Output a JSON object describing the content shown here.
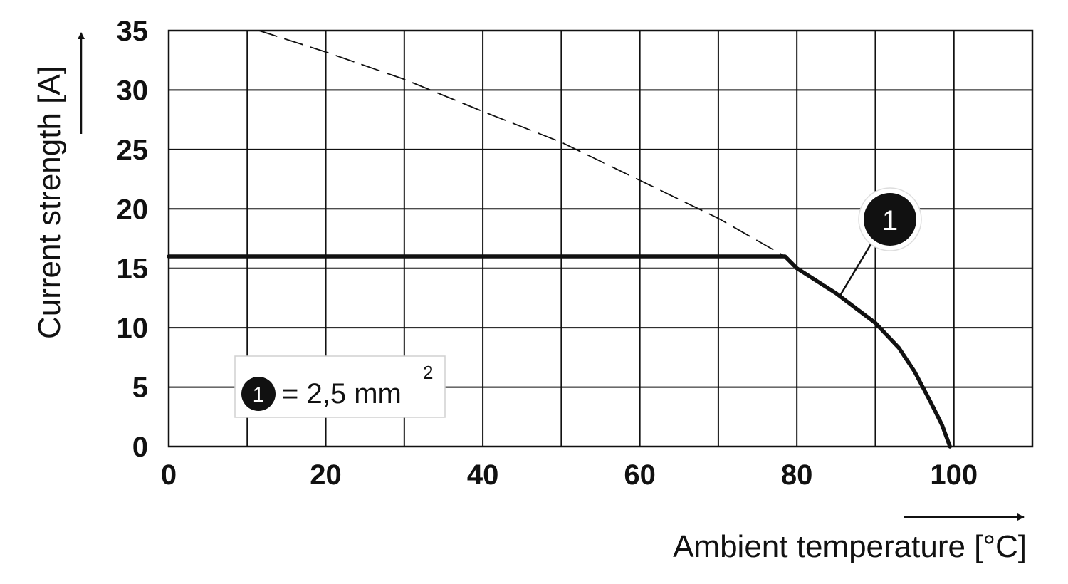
{
  "chart_data": {
    "type": "line",
    "xlabel": "Ambient temperature [°C]",
    "ylabel": "Current strength [A]",
    "xlim": [
      0,
      110
    ],
    "ylim": [
      0,
      35
    ],
    "x_ticks": [
      0,
      20,
      40,
      60,
      80,
      100
    ],
    "y_ticks": [
      0,
      5,
      10,
      15,
      20,
      25,
      30,
      35
    ],
    "x_grid_step": 10,
    "y_grid_step": 5,
    "grid": true,
    "series": [
      {
        "marker": "1",
        "style": "solid",
        "x": [
          0,
          78.5,
          80,
          85,
          90,
          93,
          95,
          97,
          98.5,
          99.5
        ],
        "y": [
          16,
          16,
          15.0,
          12.9,
          10.4,
          8.3,
          6.3,
          3.8,
          1.8,
          0
        ]
      },
      {
        "style": "dashed",
        "x": [
          11.5,
          20,
          30,
          40,
          50,
          60,
          70,
          78.5
        ],
        "y": [
          35,
          33.2,
          30.9,
          28.2,
          25.6,
          22.4,
          19.2,
          16
        ]
      }
    ],
    "annotation": {
      "label": "1",
      "target_x": 85.5,
      "target_y": 12.7
    },
    "legend": {
      "marker": "1",
      "text": "= 2,5 mm",
      "superscript": "2",
      "placement": "bottom-left"
    }
  }
}
